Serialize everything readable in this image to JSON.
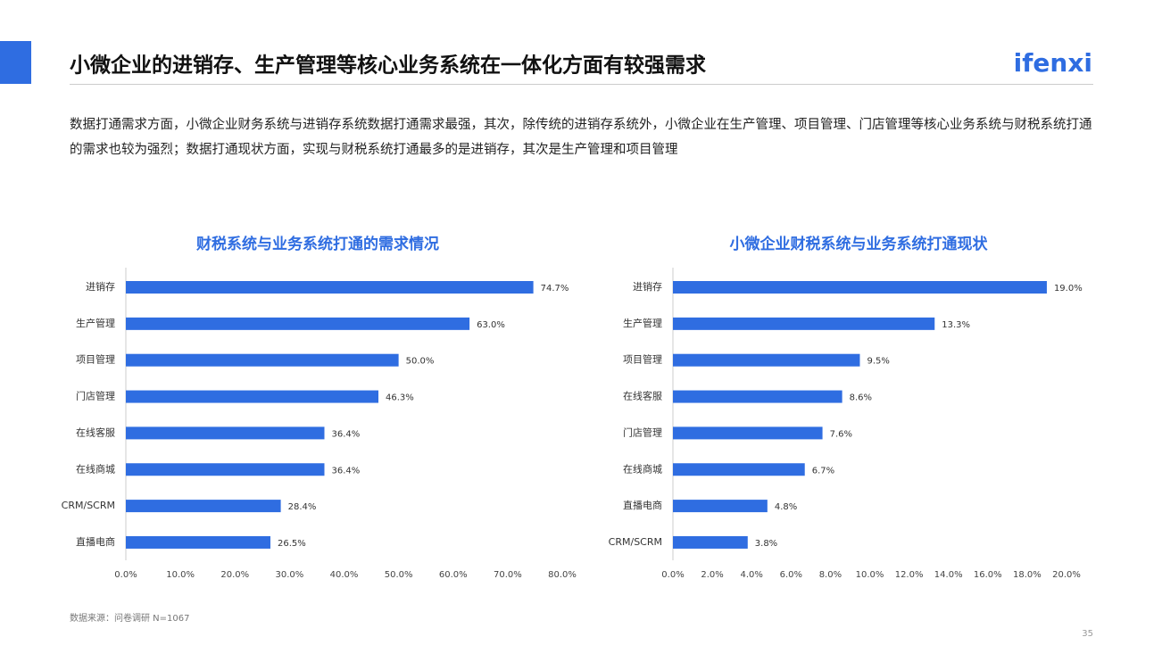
{
  "header": {
    "title": "小微企业的进销存、生产管理等核心业务系统在一体化方面有较强需求",
    "logo": "ifenxi"
  },
  "description": "数据打通需求方面，小微企业财务系统与进销存系统数据打通需求最强，其次，除传统的进销存系统外，小微企业在生产管理、项目管理、门店管理等核心业务系统与财税系统打通的需求也较为强烈；数据打通现状方面，实现与财税系统打通最多的是进销存，其次是生产管理和项目管理",
  "chart_data": [
    {
      "type": "barh",
      "title": "财税系统与业务系统打通的需求情况",
      "categories": [
        "进销存",
        "生产管理",
        "项目管理",
        "门店管理",
        "在线客服",
        "在线商城",
        "CRM/SCRM",
        "直播电商"
      ],
      "values": [
        74.7,
        63.0,
        50.0,
        46.3,
        36.4,
        36.4,
        28.4,
        26.5
      ],
      "value_labels": [
        "74.7%",
        "63.0%",
        "50.0%",
        "46.3%",
        "36.4%",
        "36.4%",
        "28.4%",
        "26.5%"
      ],
      "color": "#2f6de1",
      "xlim": [
        0,
        80
      ],
      "xticks": [
        {
          "value": 0,
          "label": "0.0%"
        },
        {
          "value": 10,
          "label": "10.0%"
        },
        {
          "value": 20,
          "label": "20.0%"
        },
        {
          "value": 30,
          "label": "30.0%"
        },
        {
          "value": 40,
          "label": "40.0%"
        },
        {
          "value": 50,
          "label": "50.0%"
        },
        {
          "value": 60,
          "label": "60.0%"
        },
        {
          "value": 70,
          "label": "70.0%"
        },
        {
          "value": 80,
          "label": "80.0%"
        }
      ]
    },
    {
      "type": "barh",
      "title": "小微企业财税系统与业务系统打通现状",
      "categories": [
        "进销存",
        "生产管理",
        "项目管理",
        "在线客服",
        "门店管理",
        "在线商城",
        "直播电商",
        "CRM/SCRM"
      ],
      "values": [
        19.0,
        13.3,
        9.5,
        8.6,
        7.6,
        6.7,
        4.8,
        3.8
      ],
      "value_labels": [
        "19.0%",
        "13.3%",
        "9.5%",
        "8.6%",
        "7.6%",
        "6.7%",
        "4.8%",
        "3.8%"
      ],
      "color": "#2f6de1",
      "xlim": [
        0,
        20
      ],
      "xticks": [
        {
          "value": 0,
          "label": "0.0%"
        },
        {
          "value": 2,
          "label": "2.0%"
        },
        {
          "value": 4,
          "label": "4.0%"
        },
        {
          "value": 6,
          "label": "6.0%"
        },
        {
          "value": 8,
          "label": "8.0%"
        },
        {
          "value": 10,
          "label": "10.0%"
        },
        {
          "value": 12,
          "label": "12.0%"
        },
        {
          "value": 14,
          "label": "14.0%"
        },
        {
          "value": 16,
          "label": "16.0%"
        },
        {
          "value": 18,
          "label": "18.0%"
        },
        {
          "value": 20,
          "label": "20.0%"
        }
      ]
    }
  ],
  "footer": {
    "source": "数据来源：问卷调研 N=1067",
    "page": "35"
  }
}
